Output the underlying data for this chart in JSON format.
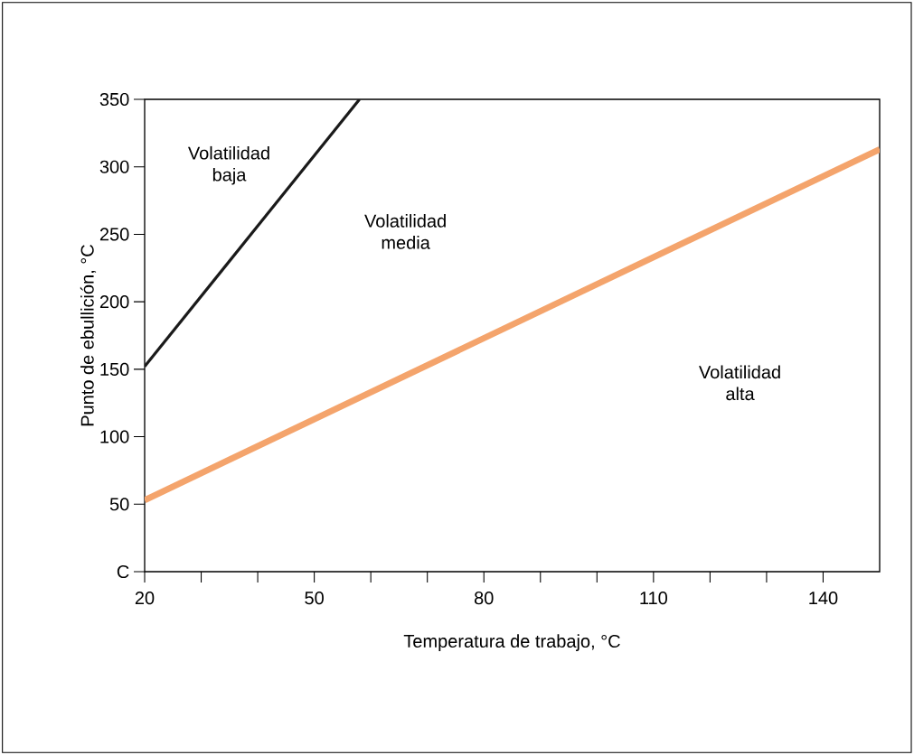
{
  "chart_data": {
    "type": "line",
    "xlabel": "Temperatura de trabajo, °C",
    "ylabel": "Punto de ebullición, °C",
    "xlim": [
      20,
      150
    ],
    "ylim": [
      0,
      350
    ],
    "xticks": [
      20,
      {
        "value": 30,
        "label": null
      },
      {
        "value": 40,
        "label": null
      },
      50,
      {
        "value": 60,
        "label": null
      },
      {
        "value": 70,
        "label": null
      },
      80,
      {
        "value": 90,
        "label": null
      },
      {
        "value": 100,
        "label": null
      },
      110,
      {
        "value": 120,
        "label": null
      },
      {
        "value": 130,
        "label": null
      },
      140
    ],
    "yticks": [
      {
        "value": 0,
        "label": "C"
      },
      50,
      100,
      150,
      200,
      250,
      300,
      350
    ],
    "series": [
      {
        "color": "#1a1a1a",
        "x": [
          20,
          58
        ],
        "values": [
          152,
          350
        ]
      },
      {
        "color": "#f4a46c",
        "x": [
          20,
          150
        ],
        "values": [
          53,
          313
        ]
      }
    ],
    "annotations": [
      "Volatilidad baja",
      "Volatilidad media",
      "Volatilidad alta"
    ],
    "grid": false,
    "marker": "none",
    "line_style": "solid"
  }
}
